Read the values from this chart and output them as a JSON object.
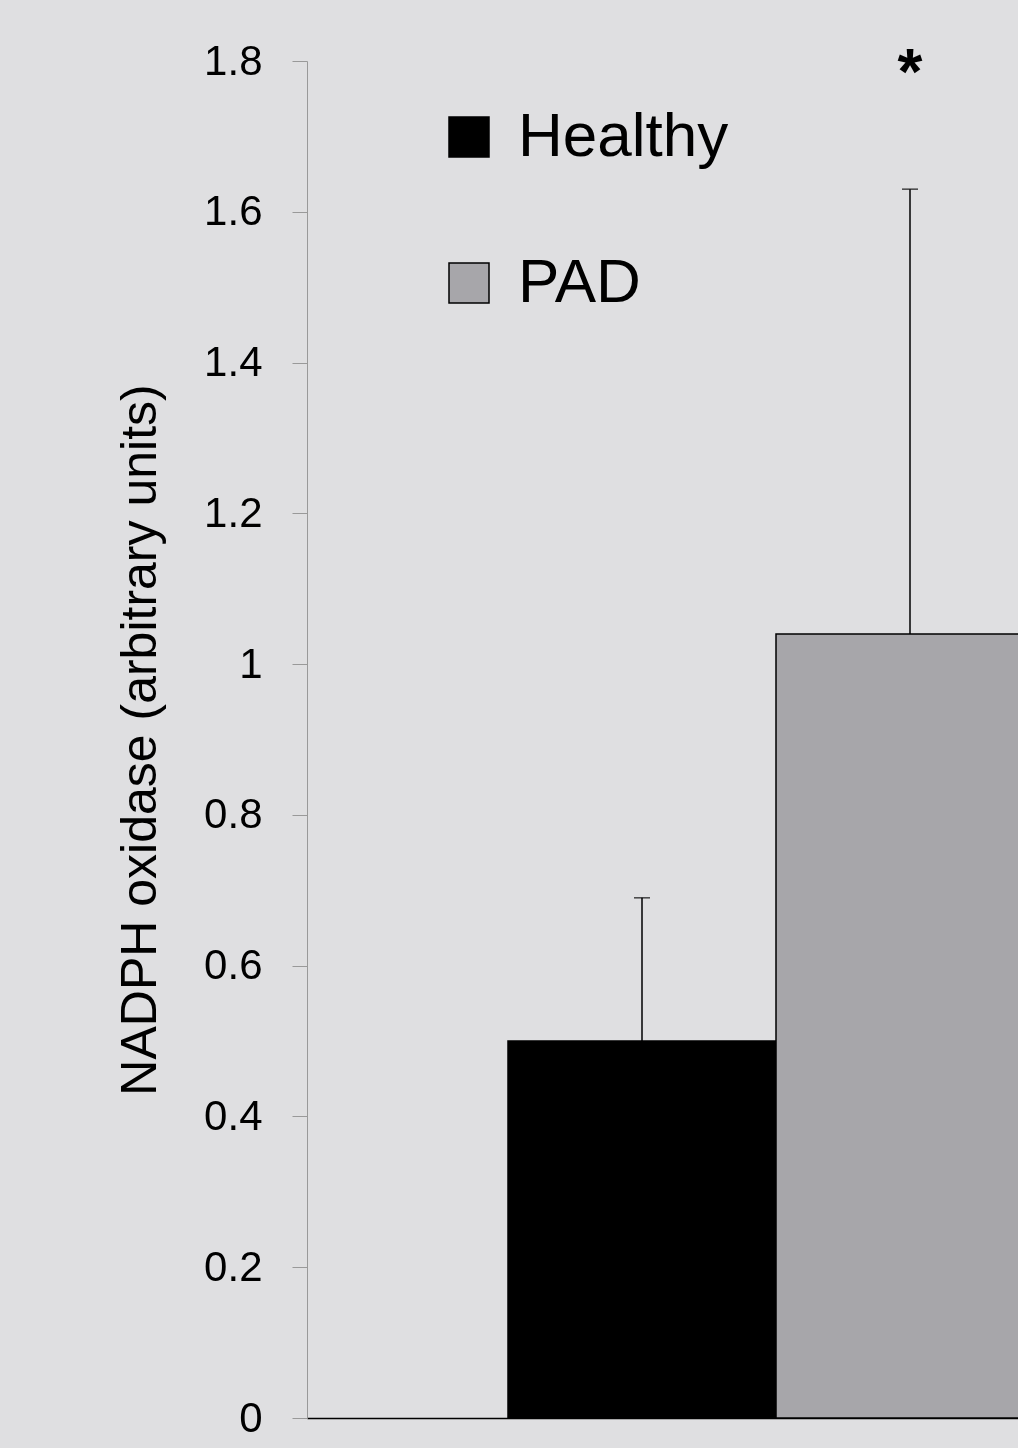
{
  "chart_data": {
    "type": "bar",
    "ylabel": "NADPH oxidase  (arbitrary units)",
    "categories": [
      null
    ],
    "series": [
      {
        "name": "Healthy",
        "color": "#000000",
        "values": [
          0.5
        ],
        "errors": [
          [
            0.5,
            0.69
          ]
        ]
      },
      {
        "name": "PAD",
        "color": "#a7a6aa",
        "values": [
          1.04
        ],
        "errors": [
          [
            1.04,
            1.63
          ]
        ]
      }
    ],
    "ylim": [
      0,
      1.8
    ],
    "yticks": [
      0,
      0.2,
      0.4,
      0.6,
      0.8,
      1,
      1.2,
      1.4,
      1.6,
      1.8
    ],
    "annotations": [
      "*"
    ],
    "legend": "top left",
    "grid": false,
    "tick_labels": "y"
  }
}
